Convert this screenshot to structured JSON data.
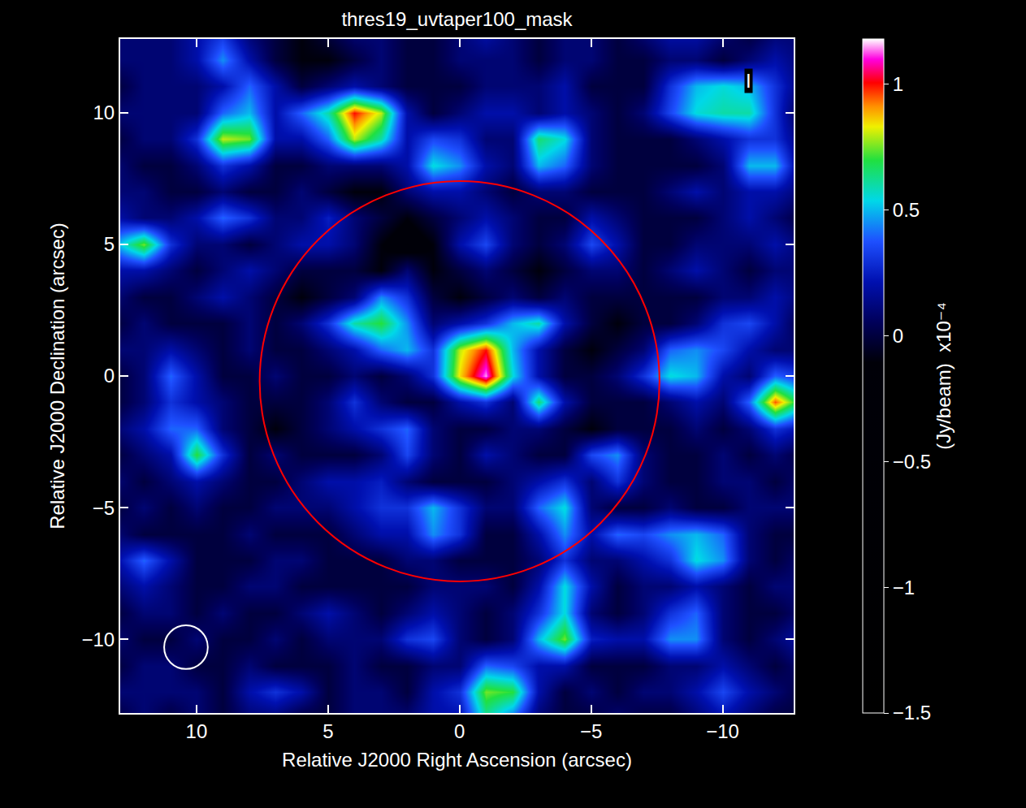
{
  "chart_data": {
    "type": "heatmap",
    "title": "thres19_uvtaper100_mask",
    "x_label": "Relative J2000 Right Ascension (arcsec)",
    "y_label": "Relative J2000 Declination (arcsec)",
    "colorbar_title": "(Jy/beam)  x10⁻⁴",
    "xlim": [
      12.9,
      -12.7
    ],
    "ylim": [
      -12.8,
      12.8
    ],
    "xticks": [
      10,
      5,
      0,
      -5,
      -10
    ],
    "yticks": [
      -10,
      -5,
      0,
      5,
      10
    ],
    "zlim": [
      -1.5,
      1.18
    ],
    "zticks": [
      1,
      0.5,
      0,
      -0.5,
      -1,
      -1.5
    ],
    "grid": false,
    "annotations": [
      {
        "text": "I",
        "x": -11,
        "y": 11.2
      }
    ],
    "shapes": [
      {
        "kind": "circle",
        "x": 0,
        "y": -0.2,
        "radius": 7.6,
        "color": "#ff0000"
      },
      {
        "kind": "circle",
        "x": 10.4,
        "y": -10.3,
        "radius": 0.83,
        "color": "#ffffff"
      }
    ],
    "x": [
      13,
      12,
      11,
      10,
      9,
      8,
      7,
      6,
      5,
      4,
      3,
      2,
      1,
      0,
      -1,
      -2,
      -3,
      -4,
      -5,
      -6,
      -7,
      -8,
      -9,
      -10,
      -11,
      -12,
      -13
    ],
    "y": [
      13,
      12,
      11,
      10,
      9,
      8,
      7,
      6,
      5,
      4,
      3,
      2,
      1,
      0,
      -1,
      -2,
      -3,
      -4,
      -5,
      -6,
      -7,
      -8,
      -9,
      -10,
      -11,
      -12,
      -13
    ],
    "z": [
      [
        0.1,
        0.1,
        0.1,
        0.2,
        0.3,
        0.1,
        0,
        -0.1,
        0,
        0.1,
        0.1,
        0,
        0,
        0.1,
        0.2,
        0.1,
        0,
        0.1,
        0.1,
        0,
        0.1,
        0.2,
        0.2,
        0.1,
        0,
        0.1,
        0.1
      ],
      [
        0.1,
        0.1,
        0.1,
        0.2,
        0.45,
        0.2,
        0,
        -0.1,
        -0.1,
        0,
        0.1,
        0,
        0,
        0.1,
        0.1,
        0.1,
        0,
        0.1,
        0.1,
        0,
        0,
        0.1,
        0.1,
        0,
        0.1,
        0.2,
        0.1
      ],
      [
        0,
        0.1,
        0.1,
        0.1,
        0.2,
        0.4,
        0.2,
        0,
        0.1,
        0.2,
        0.1,
        0,
        0,
        0,
        0.1,
        0.1,
        0.1,
        0.2,
        0,
        0,
        0,
        0.3,
        0.5,
        0.55,
        0.5,
        0.3,
        0.1
      ],
      [
        0.1,
        0.1,
        0.1,
        0.1,
        0.4,
        0.5,
        0.2,
        0.4,
        0.6,
        1.0,
        0.8,
        0.2,
        0,
        0.1,
        0.2,
        0.2,
        0.1,
        0.2,
        0.1,
        0,
        0.1,
        0.35,
        0.55,
        0.6,
        0.6,
        0.3,
        0
      ],
      [
        0,
        0.1,
        0.1,
        0.3,
        0.8,
        0.75,
        0.2,
        0.2,
        0.4,
        0.8,
        0.6,
        0.2,
        0.35,
        0.3,
        0.1,
        0.1,
        0.65,
        0.55,
        0.1,
        0,
        0,
        0,
        0.1,
        0.2,
        0.3,
        0.3,
        0.1
      ],
      [
        0.1,
        0,
        0,
        0.1,
        0.3,
        0.2,
        0,
        0,
        0.1,
        0.1,
        0.1,
        0.2,
        0.55,
        0.45,
        0.2,
        0.1,
        0.5,
        0.4,
        0.1,
        0,
        0,
        0,
        0,
        0.1,
        0.5,
        0.5,
        0.1
      ],
      [
        0.1,
        0.1,
        0,
        0,
        0.1,
        0,
        0,
        0.1,
        0,
        -0.1,
        -0.1,
        0.1,
        0.2,
        0.2,
        0.1,
        0,
        0.1,
        0.1,
        0,
        0,
        0,
        0.1,
        0.2,
        0.1,
        0.2,
        0.2,
        0.1
      ],
      [
        0.2,
        0.1,
        0.1,
        0.2,
        0.4,
        0.3,
        0.1,
        0.1,
        0.25,
        0.1,
        0,
        -0.1,
        0,
        0.1,
        0.2,
        0.1,
        0,
        0,
        0.2,
        0.1,
        0,
        0,
        0,
        0.1,
        0.2,
        0.1,
        0
      ],
      [
        0.5,
        0.75,
        0.3,
        0.1,
        0.1,
        0,
        0.1,
        0.2,
        0.2,
        0.1,
        -0.1,
        -0.2,
        -0.1,
        0.2,
        0.35,
        0.1,
        0,
        0.1,
        0.35,
        0.2,
        0,
        0,
        0.1,
        0.1,
        0.1,
        0.2,
        0.1
      ],
      [
        0.2,
        0.2,
        0.1,
        0,
        0.1,
        0.2,
        0.1,
        0,
        0,
        0,
        -0.1,
        0.1,
        -0.1,
        0,
        0.1,
        0,
        -0.1,
        0,
        0.1,
        0.1,
        0,
        0.1,
        0.2,
        0.1,
        0,
        0.1,
        0.1
      ],
      [
        0.1,
        0,
        0,
        0.1,
        0.2,
        0.1,
        0,
        -0.1,
        0,
        0.1,
        0.45,
        0.3,
        0,
        -0.1,
        0,
        0.1,
        0,
        0.1,
        0,
        0,
        0,
        0,
        0,
        0.1,
        0.1,
        0.2,
        0.1
      ],
      [
        0,
        0.1,
        0,
        0,
        0,
        0.1,
        0,
        0.1,
        0.3,
        0.6,
        0.7,
        0.45,
        0.1,
        0.2,
        0.3,
        0.5,
        0.6,
        0.2,
        0,
        -0.1,
        0,
        0,
        0.1,
        0.3,
        0.35,
        0.2,
        0
      ],
      [
        0.1,
        0.1,
        0.2,
        0.1,
        0,
        0.1,
        0,
        0,
        0.1,
        0.2,
        0.4,
        0.5,
        0.3,
        0.8,
        1.0,
        0.5,
        0.2,
        0,
        -0.1,
        0,
        0.1,
        0.4,
        0.45,
        0.35,
        0.2,
        0.1,
        0.1
      ],
      [
        0,
        0.1,
        0.4,
        0.2,
        0,
        0,
        0.1,
        0,
        0,
        0.1,
        0,
        0.1,
        0.3,
        0.85,
        1.15,
        0.55,
        0.2,
        0,
        0,
        0.1,
        0.3,
        0.55,
        0.5,
        0.2,
        0.1,
        0.4,
        0.3
      ],
      [
        0,
        0.1,
        0.3,
        0.2,
        0.1,
        0,
        0,
        0,
        0.1,
        0.3,
        0.1,
        0,
        0,
        0.2,
        0.3,
        0.1,
        0.65,
        0.2,
        0,
        0,
        0,
        0.1,
        0.2,
        0.1,
        0.4,
        0.95,
        0.6
      ],
      [
        0.1,
        0.2,
        0.4,
        0.4,
        0.1,
        0,
        -0.1,
        0,
        0.1,
        0.2,
        0.3,
        0.4,
        0.1,
        0,
        0,
        0.1,
        0.1,
        0,
        -0.1,
        0,
        0,
        0,
        0.1,
        0,
        0.1,
        0.3,
        0.2
      ],
      [
        0,
        0.1,
        0.2,
        0.7,
        0.3,
        0,
        0.1,
        0,
        0,
        0,
        0.1,
        0.35,
        0.1,
        0,
        0.2,
        0.1,
        0,
        0,
        0.35,
        0.45,
        0.1,
        0,
        0,
        0.1,
        0,
        0.1,
        0
      ],
      [
        0.1,
        0,
        0.1,
        0.2,
        0.1,
        0,
        0,
        0.1,
        0.2,
        0.2,
        0.25,
        0.1,
        0,
        0,
        0,
        0.1,
        0.2,
        0.3,
        0.1,
        0.3,
        0.1,
        0,
        0,
        0.1,
        0.1,
        0,
        0.1
      ],
      [
        0,
        0.1,
        0,
        0.1,
        0,
        0,
        0.1,
        0.1,
        0.1,
        0.2,
        0.3,
        0.3,
        0.5,
        0.3,
        0.1,
        0.1,
        0.4,
        0.55,
        0.1,
        0,
        0,
        0.1,
        0,
        0,
        0.1,
        0.1,
        0.1
      ],
      [
        0.1,
        0,
        0,
        0,
        0,
        0.1,
        0,
        0,
        0,
        0.1,
        0.2,
        0.2,
        0.45,
        0.3,
        0,
        0,
        0.2,
        0.45,
        0.2,
        0.4,
        0.35,
        0.45,
        0.5,
        0.4,
        0.1,
        0,
        0
      ],
      [
        0.2,
        0.4,
        0.2,
        0,
        0,
        0,
        0.1,
        0.1,
        0,
        0,
        0,
        0.1,
        0.1,
        0,
        0,
        0,
        0.1,
        0.3,
        0.1,
        0.1,
        0.2,
        0.3,
        0.55,
        0.45,
        0.1,
        0,
        0.1
      ],
      [
        0.1,
        0.2,
        0.1,
        0,
        0,
        0.1,
        0.1,
        0,
        0,
        0,
        0,
        0,
        0.1,
        0.1,
        0.1,
        0,
        0.2,
        0.55,
        0.2,
        0,
        0.1,
        0.1,
        0.2,
        0.1,
        0,
        0.1,
        0.1
      ],
      [
        0,
        0.1,
        0.1,
        0,
        0.1,
        0,
        0,
        0.1,
        0.2,
        0.1,
        0,
        0.1,
        0.2,
        0.1,
        0,
        0.1,
        0.3,
        0.55,
        0.1,
        0,
        0.1,
        0.3,
        0.4,
        0.1,
        0,
        0,
        0.1
      ],
      [
        0.1,
        0,
        0,
        0.1,
        0,
        0,
        0.1,
        0,
        0.1,
        0.1,
        0.1,
        0.3,
        0.35,
        0.1,
        0,
        0.1,
        0.5,
        0.75,
        0.25,
        0.2,
        0.2,
        0.45,
        0.45,
        0.1,
        0,
        0.1,
        0.2
      ],
      [
        0,
        0.1,
        0.1,
        0,
        0,
        0.1,
        0,
        0,
        0,
        0.1,
        0,
        0,
        0.1,
        0.1,
        0.4,
        0.35,
        0.2,
        0.2,
        0,
        0,
        0,
        0.1,
        0.1,
        0.2,
        0.1,
        0,
        0.1
      ],
      [
        0.1,
        0.1,
        0.1,
        0.1,
        0,
        0.2,
        0.3,
        0.2,
        0,
        0.1,
        0.1,
        0,
        0.2,
        0.3,
        0.75,
        0.7,
        0.2,
        0,
        0.1,
        0,
        0.1,
        0.1,
        0.2,
        0.35,
        0.2,
        0.1,
        0
      ],
      [
        0,
        0.1,
        0,
        0.1,
        0,
        0.1,
        0.1,
        0,
        0,
        0.1,
        0.1,
        0.1,
        0.2,
        0.2,
        0.6,
        0.4,
        0.1,
        0,
        0,
        0.1,
        0,
        0,
        0.1,
        0.2,
        0.1,
        0,
        0
      ]
    ]
  }
}
